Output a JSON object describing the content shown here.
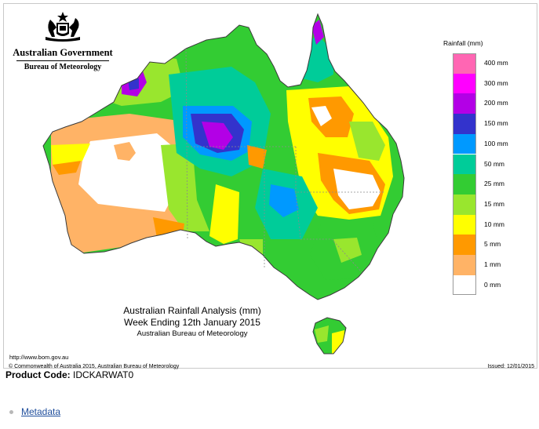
{
  "header": {
    "government_name": "Australian Government",
    "bureau_name": "Bureau of Meteorology"
  },
  "map": {
    "title_line1": "Australian Rainfall Analysis (mm)",
    "title_line2": "Week Ending 12th January 2015",
    "title_line3": "Australian Bureau of Meteorology",
    "website": "http://www.bom.gov.au",
    "copyright": "© Commonwealth of Australia 2015, Australian Bureau of Meteorology",
    "issued": "Issued: 12/01/2015"
  },
  "legend": {
    "title": "Rainfall (mm)",
    "items": [
      {
        "label": "400 mm",
        "color": "#ff66b3"
      },
      {
        "label": "300 mm",
        "color": "#ff00ff"
      },
      {
        "label": "200 mm",
        "color": "#b300e6"
      },
      {
        "label": "150 mm",
        "color": "#3333cc"
      },
      {
        "label": "100 mm",
        "color": "#0099ff"
      },
      {
        "label": "50 mm",
        "color": "#00cc99"
      },
      {
        "label": "25 mm",
        "color": "#33cc33"
      },
      {
        "label": "15 mm",
        "color": "#99e62e"
      },
      {
        "label": "10 mm",
        "color": "#ffff00"
      },
      {
        "label": "5 mm",
        "color": "#ff9900"
      },
      {
        "label": "1 mm",
        "color": "#ffb366"
      },
      {
        "label": "0 mm",
        "color": "#ffffff"
      }
    ]
  },
  "product": {
    "label": "Product Code:",
    "code": "IDCKARWAT0"
  },
  "links": {
    "metadata": "Metadata"
  },
  "colors": {
    "outline": "#3a3a3a",
    "state_border": "#8a8a8a",
    "link": "#1f4e9c"
  }
}
